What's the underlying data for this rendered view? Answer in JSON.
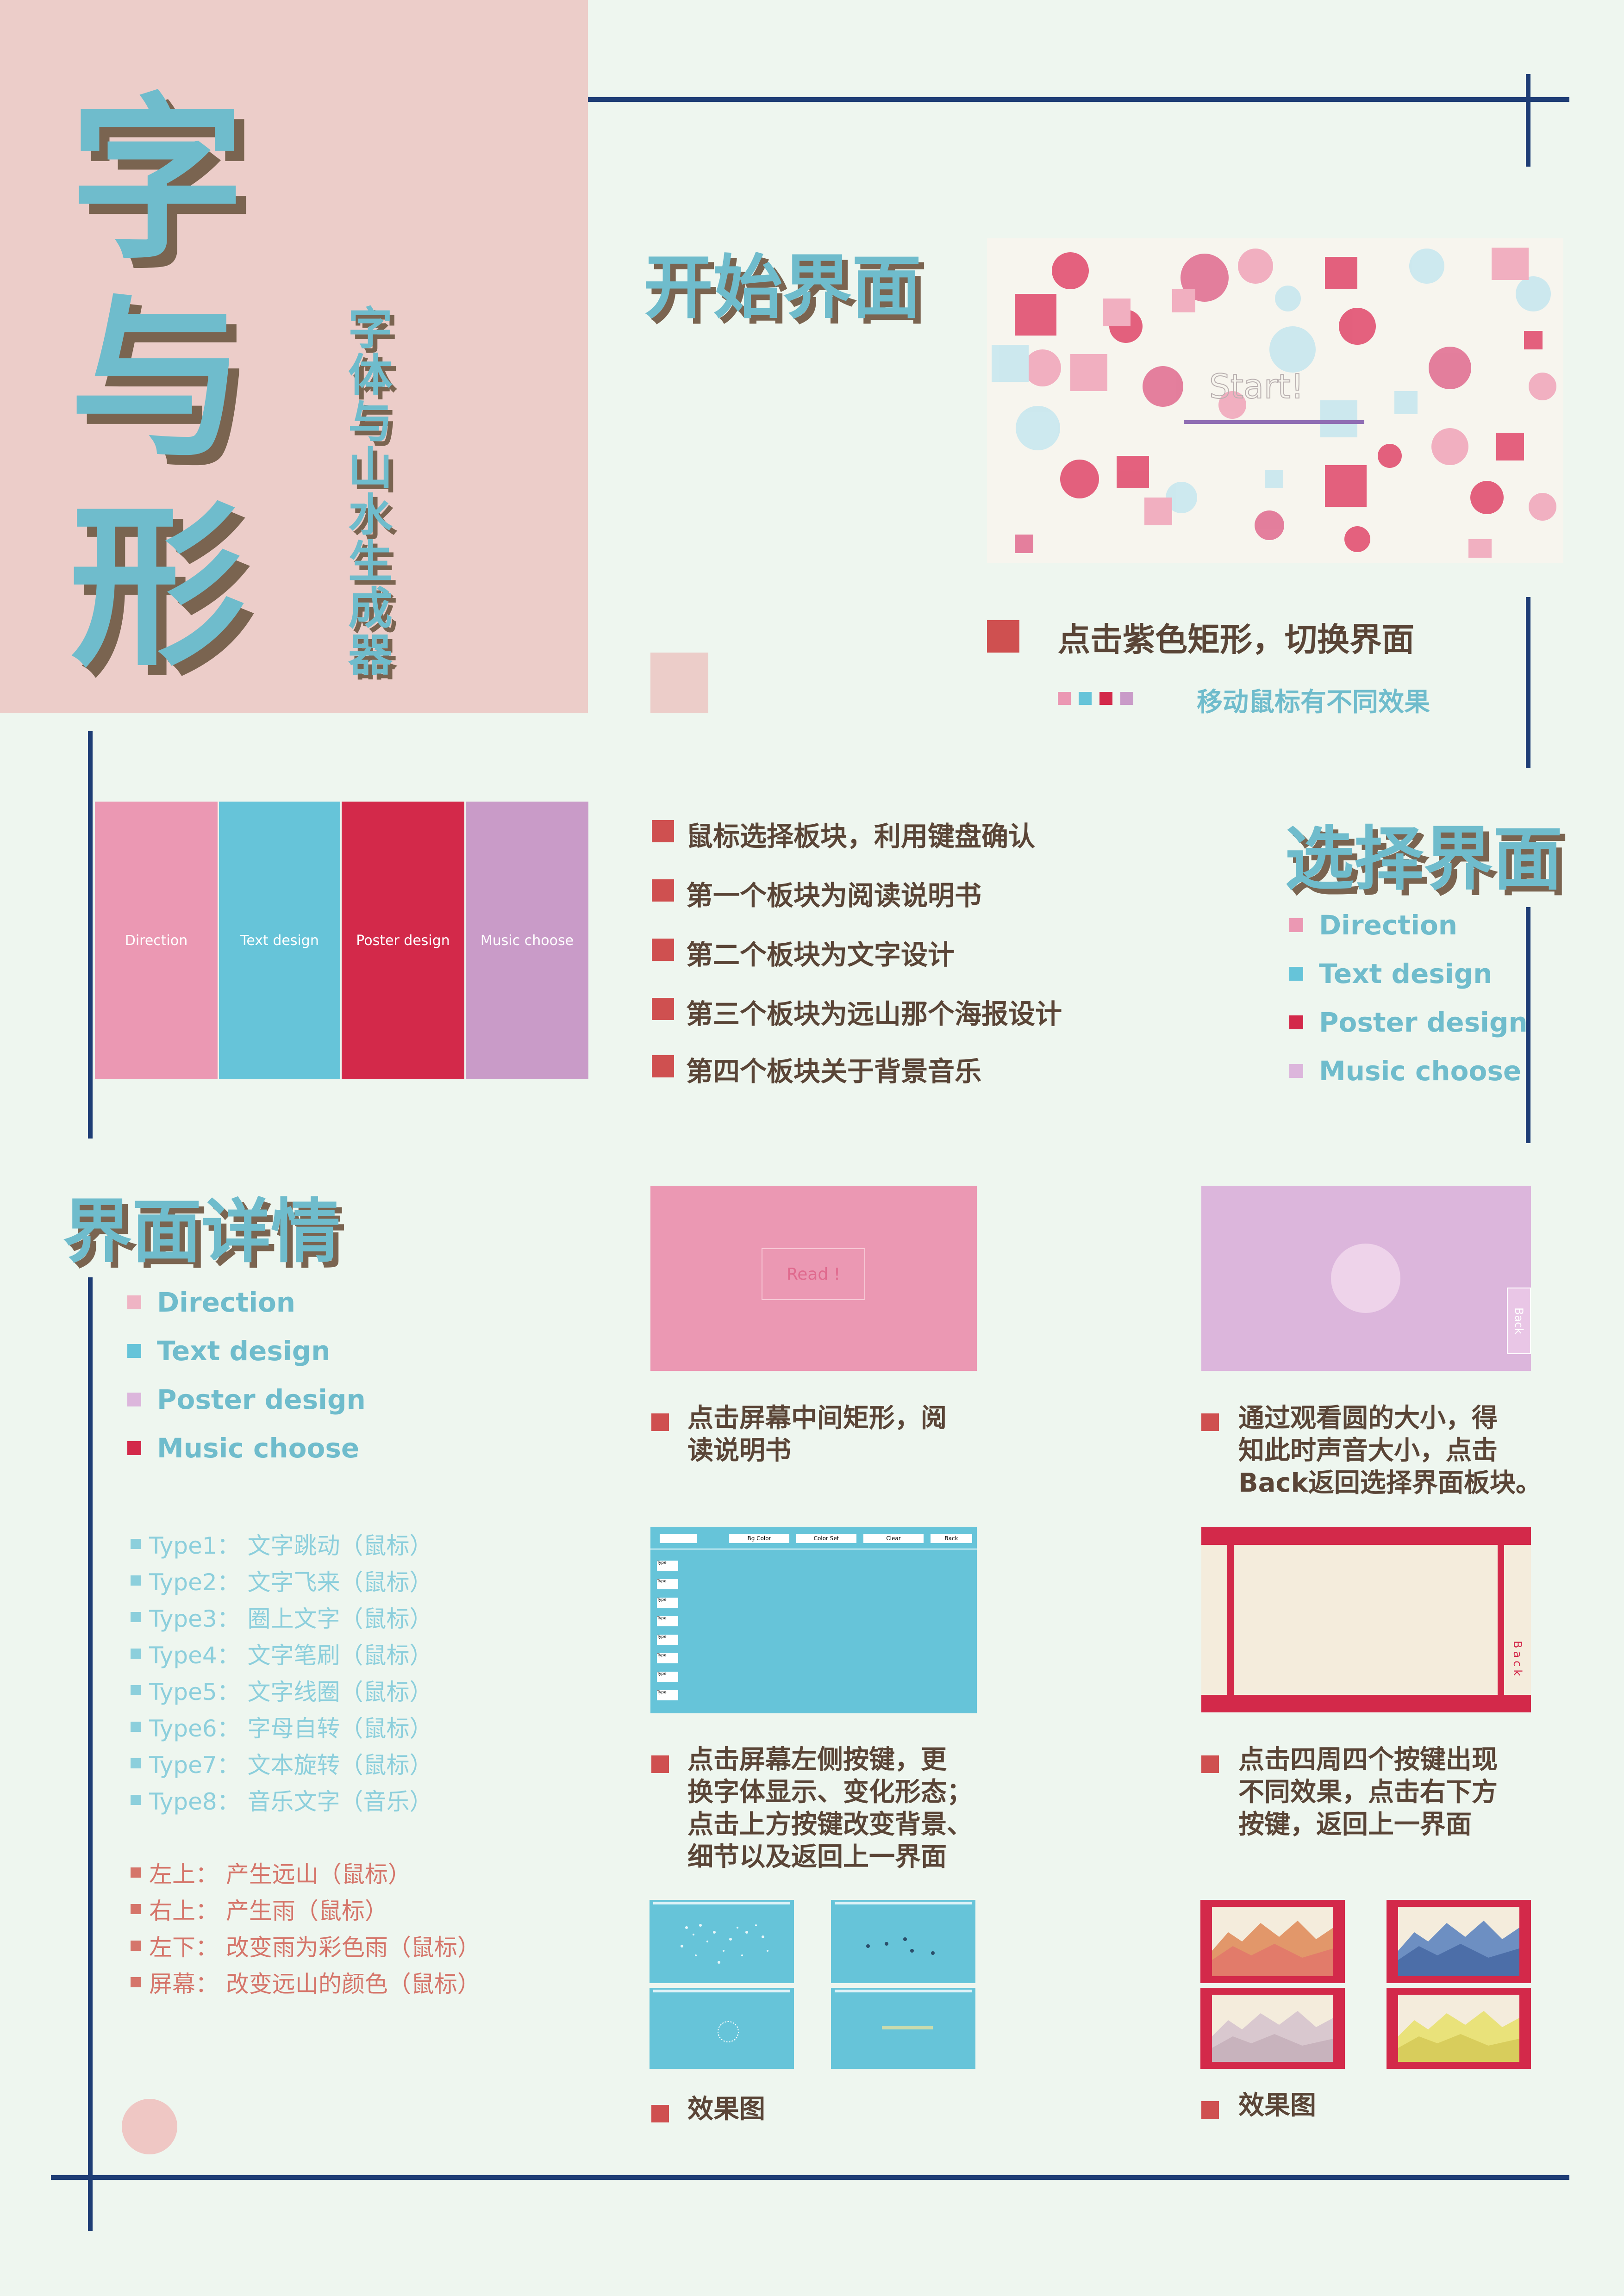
{
  "title": {
    "chars": [
      "字",
      "与",
      "形"
    ],
    "subtitle": "字体与山水生成器"
  },
  "sections": {
    "start": {
      "heading": "开始界面",
      "preview_text": "Start!",
      "bullet": "点击紫色矩形，切换界面",
      "hint": "移动鼠标有不同效果"
    },
    "select": {
      "heading": "选择界面",
      "panels": [
        "Direction",
        "Text design",
        "Poster design",
        "Music choose"
      ],
      "bullets": [
        "鼠标选择板块，利用键盘确认",
        "第一个板块为阅读说明书",
        "第二个板块为文字设计",
        "第三个板块为远山那个海报设计",
        "第四个板块关于背景音乐"
      ],
      "legend": [
        "Direction",
        "Text design",
        "Poster design",
        "Music choose"
      ]
    },
    "detail": {
      "heading": "界面详情",
      "legend": [
        "Direction",
        "Text design",
        "Poster design",
        "Music choose"
      ],
      "types": [
        "Type1： 文字跳动（鼠标）",
        "Type2： 文字飞来（鼠标）",
        "Type3： 圈上文字（鼠标）",
        "Type4： 文字笔刷（鼠标）",
        "Type5： 文字线圈（鼠标）",
        "Type6： 字母自转（鼠标）",
        "Type7： 文本旋转（鼠标）",
        "Type8： 音乐文字（音乐）"
      ],
      "poster_actions": [
        "左上： 产生远山（鼠标）",
        "右上： 产生雨（鼠标）",
        "左下： 改变雨为彩色雨（鼠标）",
        "屏幕： 改变远山的颜色（鼠标）"
      ],
      "read_preview_text": "Read !",
      "back_label": "Back",
      "desc_direction_l1": "点击屏幕中间矩形，阅",
      "desc_direction_l2": "读说明书",
      "desc_music_l1": "通过观看圆的大小，得",
      "desc_music_l2": "知此时声音大小，点击",
      "desc_music_l3": "Back返回选择界面板块。",
      "desc_text_l1": "点击屏幕左侧按键，更",
      "desc_text_l2": "换字体显示、变化形态；",
      "desc_text_l3": "点击上方按键改变背景、",
      "desc_text_l4": "细节以及返回上一界面",
      "desc_poster_l1": "点击四周四个按键出现",
      "desc_poster_l2": "不同效果，点击右下方",
      "desc_poster_l3": "按键，返回上一界面",
      "effect_label": "效果图",
      "text_top_buttons": [
        "Bg Color",
        "Color Set",
        "Clear",
        "Back"
      ],
      "text_side_button": "Type"
    }
  },
  "colors": {
    "pink": "#eb98b3",
    "blue": "#66c4d9",
    "red": "#d3294a",
    "purple": "#c99bc8",
    "navy": "#1e3d75",
    "accent_red": "#cf5050"
  }
}
